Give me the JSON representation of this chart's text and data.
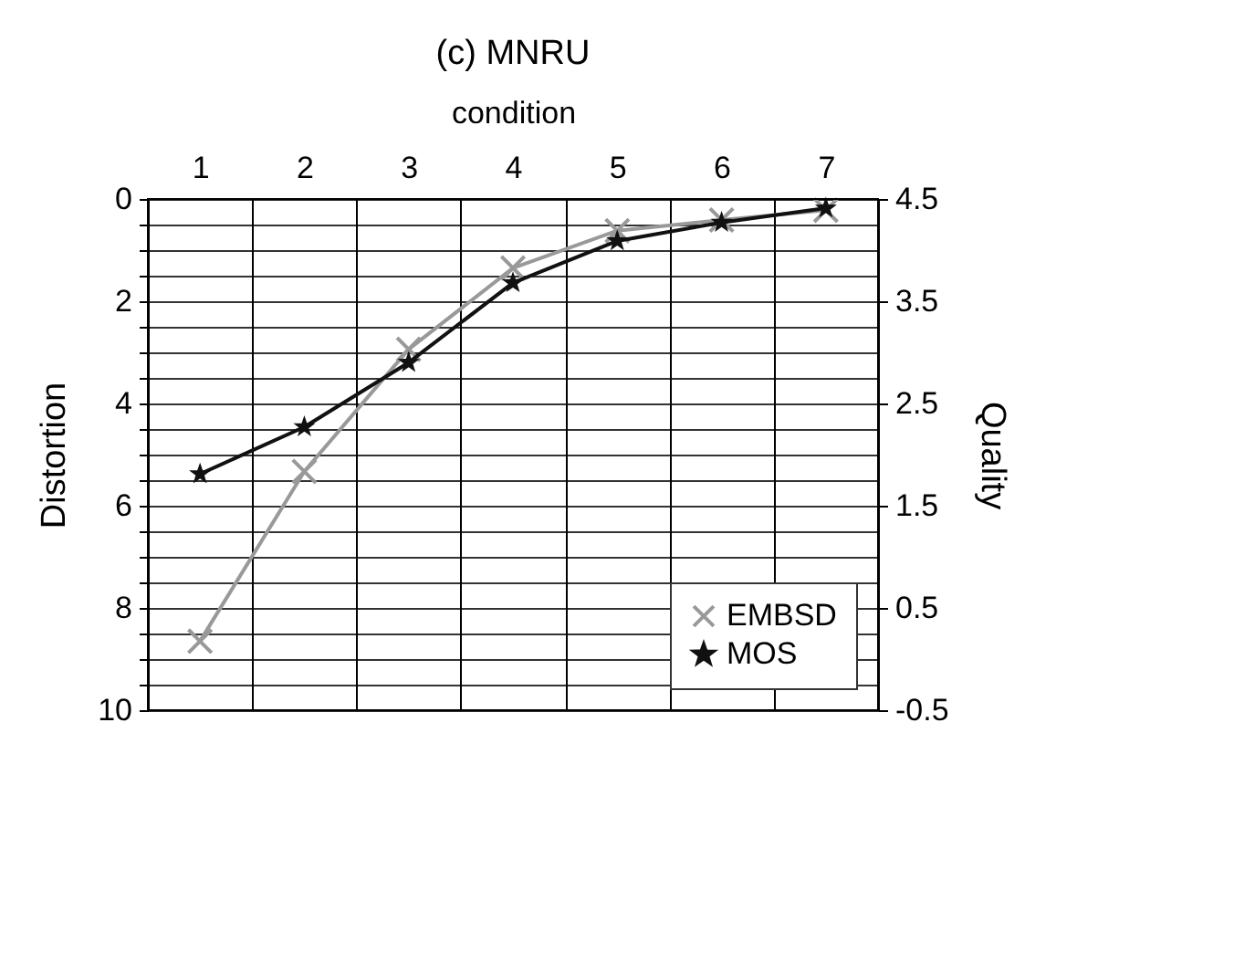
{
  "chart_data": {
    "type": "line",
    "title": "(c) MNRU",
    "xlabel": "condition",
    "ylabel": "Distortion",
    "y2label": "Quality",
    "categories": [
      "1",
      "2",
      "3",
      "4",
      "5",
      "6",
      "7"
    ],
    "series": [
      {
        "name": "EMBSD",
        "color": "#999999",
        "marker": "cross",
        "values": [
          8.65,
          5.33,
          2.94,
          1.35,
          0.62,
          0.41,
          0.22
        ]
      },
      {
        "name": "MOS",
        "color": "#111111",
        "marker": "star",
        "axis": "y2",
        "values": [
          1.81,
          2.27,
          2.9,
          3.68,
          4.09,
          4.27,
          4.41
        ]
      }
    ],
    "ylim": [
      10,
      0
    ],
    "yticks": [
      0,
      {
        "value": 0.5,
        "label": null
      },
      2,
      {
        "value": 1,
        "label": null
      },
      {
        "value": 1.5,
        "label": null
      },
      {
        "value": 2.5,
        "label": null
      },
      {
        "value": 3,
        "label": null
      },
      {
        "value": 3.5,
        "label": null
      },
      4,
      {
        "value": 4.5,
        "label": null
      },
      {
        "value": 5,
        "label": null
      },
      {
        "value": 5.5,
        "label": null
      },
      6,
      {
        "value": 6.5,
        "label": null
      },
      {
        "value": 7,
        "label": null
      },
      {
        "value": 7.5,
        "label": null
      },
      8,
      {
        "value": 8.5,
        "label": null
      },
      {
        "value": 9,
        "label": null
      },
      {
        "value": 9.5,
        "label": null
      },
      10
    ],
    "y2lim": [
      -0.5,
      4.5
    ],
    "y2ticks": [
      4.5,
      3.5,
      2.5,
      1.5,
      0.5,
      -0.5
    ],
    "grid": true,
    "legend": "bottom right"
  }
}
